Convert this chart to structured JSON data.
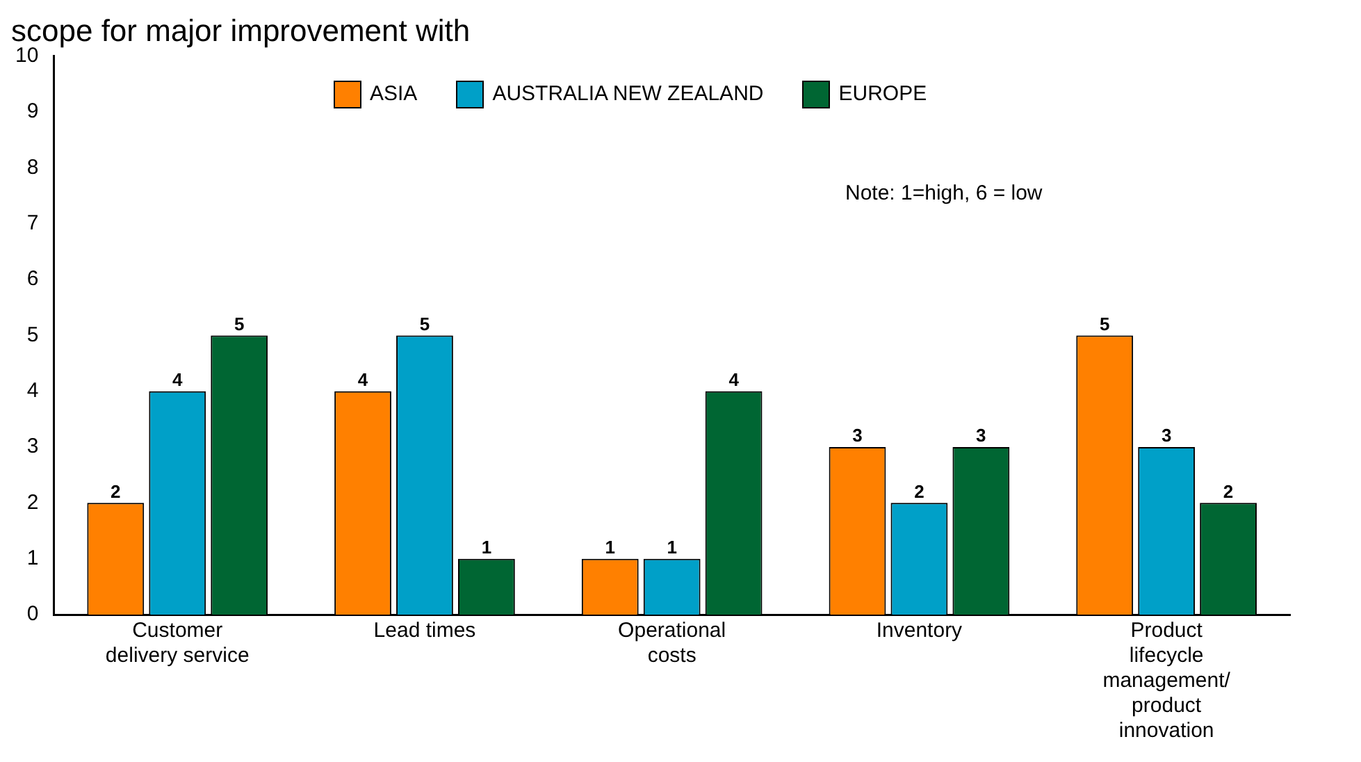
{
  "chart_data": {
    "type": "bar",
    "title": "scope for major improvement with",
    "categories": [
      "Customer delivery service",
      "Lead times",
      "Operational costs",
      "Inventory",
      "Product lifecycle management/ product innovation"
    ],
    "series": [
      {
        "name": "ASIA",
        "color": "#ff8000",
        "values": [
          2,
          4,
          1,
          3,
          5
        ]
      },
      {
        "name": "AUSTRALIA NEW ZEALAND",
        "color": "#00a0c8",
        "values": [
          4,
          5,
          1,
          2,
          3
        ]
      },
      {
        "name": "EUROPE",
        "color": "#006633",
        "values": [
          5,
          1,
          4,
          3,
          2
        ]
      }
    ],
    "ylim": [
      0,
      10
    ],
    "yticks": [
      0,
      1,
      2,
      3,
      4,
      5,
      6,
      7,
      8,
      9,
      10
    ],
    "annotations": [
      "Note: 1=high, 6 = low"
    ],
    "data_labels": true,
    "grid": false,
    "legend": "top"
  }
}
